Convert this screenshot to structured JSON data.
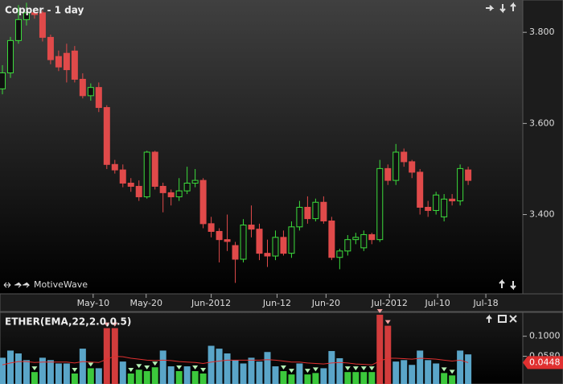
{
  "chart_data": [
    {
      "type": "candlestick",
      "title": "Copper - 1 day",
      "watermark": "MotiveWave",
      "up_color": "#3cdc3c",
      "down_color": "#e04a4a",
      "open": [
        3.676,
        3.711,
        3.782,
        3.828,
        3.843,
        3.843,
        3.789,
        3.747,
        3.754,
        3.759,
        3.697,
        3.661,
        3.679,
        3.635,
        3.51,
        3.498,
        3.469,
        3.462,
        3.439,
        3.537,
        3.462,
        3.448,
        3.439,
        3.452,
        3.469,
        3.475,
        3.38,
        3.363,
        3.345,
        3.332,
        3.302,
        3.377,
        3.368,
        3.315,
        3.309,
        3.35,
        3.315,
        3.373,
        3.416,
        3.391,
        3.427,
        3.386,
        3.306,
        3.32,
        3.345,
        3.327,
        3.356,
        3.345,
        3.501,
        3.475,
        3.537,
        3.516,
        3.493,
        3.416,
        3.409,
        3.395,
        3.434,
        3.43,
        3.498
      ],
      "high": [
        3.728,
        3.79,
        3.86,
        3.865,
        3.85,
        3.848,
        3.795,
        3.76,
        3.775,
        3.77,
        3.71,
        3.688,
        3.69,
        3.64,
        3.52,
        3.51,
        3.48,
        3.475,
        3.54,
        3.54,
        3.47,
        3.455,
        3.48,
        3.505,
        3.5,
        3.48,
        3.395,
        3.37,
        3.4,
        3.34,
        3.39,
        3.42,
        3.38,
        3.345,
        3.365,
        3.365,
        3.385,
        3.43,
        3.44,
        3.435,
        3.44,
        3.395,
        3.325,
        3.355,
        3.36,
        3.365,
        3.36,
        3.52,
        3.51,
        3.555,
        3.545,
        3.52,
        3.5,
        3.43,
        3.45,
        3.445,
        3.445,
        3.51,
        3.505
      ],
      "low": [
        3.664,
        3.7,
        3.775,
        3.815,
        3.83,
        3.78,
        3.73,
        3.715,
        3.69,
        3.69,
        3.655,
        3.65,
        3.625,
        3.5,
        3.49,
        3.46,
        3.45,
        3.43,
        3.435,
        3.455,
        3.405,
        3.42,
        3.43,
        3.445,
        3.46,
        3.37,
        3.35,
        3.295,
        3.32,
        3.25,
        3.295,
        3.35,
        3.3,
        3.285,
        3.3,
        3.31,
        3.305,
        3.365,
        3.38,
        3.385,
        3.38,
        3.3,
        3.28,
        3.31,
        3.335,
        3.32,
        3.335,
        3.34,
        3.465,
        3.465,
        3.505,
        3.48,
        3.4,
        3.395,
        3.4,
        3.385,
        3.42,
        3.42,
        3.465
      ],
      "close": [
        3.711,
        3.782,
        3.828,
        3.843,
        3.839,
        3.789,
        3.74,
        3.724,
        3.718,
        3.697,
        3.661,
        3.679,
        3.635,
        3.51,
        3.498,
        3.469,
        3.462,
        3.439,
        3.537,
        3.462,
        3.448,
        3.439,
        3.452,
        3.469,
        3.475,
        3.38,
        3.363,
        3.345,
        3.341,
        3.302,
        3.377,
        3.368,
        3.315,
        3.309,
        3.35,
        3.315,
        3.373,
        3.416,
        3.391,
        3.427,
        3.386,
        3.306,
        3.32,
        3.345,
        3.35,
        3.356,
        3.345,
        3.501,
        3.475,
        3.537,
        3.516,
        3.493,
        3.416,
        3.409,
        3.443,
        3.434,
        3.43,
        3.501,
        3.475
      ],
      "xlim": [
        -0.3,
        64.8
      ],
      "xticks": [
        {
          "value": 11.3,
          "label": "May-10"
        },
        {
          "value": 17.9,
          "label": "May-20"
        },
        {
          "value": 26.0,
          "label": "Jun-2012"
        },
        {
          "value": 34.2,
          "label": "Jun-12"
        },
        {
          "value": 40.3,
          "label": "Jun-20"
        },
        {
          "value": 48.2,
          "label": "Jul-2012"
        },
        {
          "value": 54.2,
          "label": "Jul-10"
        },
        {
          "value": 60.2,
          "label": "Jul-18"
        }
      ],
      "ylim": [
        3.226,
        3.871
      ],
      "yticks": [
        {
          "value": 3.8,
          "label": "3.800"
        },
        {
          "value": 3.6,
          "label": "3.600"
        },
        {
          "value": 3.4,
          "label": "3.400"
        }
      ]
    },
    {
      "type": "bar",
      "title": "ETHER(EMA,22,2.0,0.5)",
      "values": [
        0.055,
        0.07,
        0.064,
        0.05,
        0.025,
        0.055,
        0.05,
        0.043,
        0.043,
        0.022,
        0.074,
        0.033,
        0.033,
        0.117,
        0.117,
        0.047,
        0.022,
        0.03,
        0.027,
        0.035,
        0.07,
        0.037,
        0.027,
        0.037,
        0.027,
        0.022,
        0.08,
        0.074,
        0.064,
        0.05,
        0.043,
        0.055,
        0.047,
        0.067,
        0.037,
        0.027,
        0.02,
        0.043,
        0.02,
        0.023,
        0.033,
        0.069,
        0.054,
        0.025,
        0.025,
        0.025,
        0.025,
        0.145,
        0.122,
        0.047,
        0.05,
        0.04,
        0.07,
        0.05,
        0.043,
        0.023,
        0.018,
        0.07,
        0.062
      ],
      "colors": [
        "#5aa5c8",
        "#5aa5c8",
        "#5aa5c8",
        "#5aa5c8",
        "#3cc83c",
        "#5aa5c8",
        "#5aa5c8",
        "#5aa5c8",
        "#5aa5c8",
        "#3cc83c",
        "#5aa5c8",
        "#3cc83c",
        "#5aa5c8",
        "#d23c3c",
        "#d23c3c",
        "#5aa5c8",
        "#3cc83c",
        "#3cc83c",
        "#3cc83c",
        "#3cc83c",
        "#5aa5c8",
        "#5aa5c8",
        "#3cc83c",
        "#5aa5c8",
        "#3cc83c",
        "#3cc83c",
        "#5aa5c8",
        "#5aa5c8",
        "#5aa5c8",
        "#5aa5c8",
        "#5aa5c8",
        "#5aa5c8",
        "#5aa5c8",
        "#5aa5c8",
        "#5aa5c8",
        "#3cc83c",
        "#3cc83c",
        "#5aa5c8",
        "#3cc83c",
        "#3cc83c",
        "#5aa5c8",
        "#5aa5c8",
        "#5aa5c8",
        "#3cc83c",
        "#3cc83c",
        "#3cc83c",
        "#3cc83c",
        "#d23c3c",
        "#d23c3c",
        "#5aa5c8",
        "#5aa5c8",
        "#5aa5c8",
        "#5aa5c8",
        "#5aa5c8",
        "#5aa5c8",
        "#3cc83c",
        "#3cc83c",
        "#5aa5c8",
        "#5aa5c8"
      ],
      "line": {
        "color": "#e03030",
        "values": [
          0.04,
          0.044,
          0.047,
          0.047,
          0.045,
          0.046,
          0.046,
          0.046,
          0.046,
          0.044,
          0.047,
          0.046,
          0.045,
          0.052,
          0.058,
          0.057,
          0.054,
          0.052,
          0.05,
          0.049,
          0.05,
          0.049,
          0.047,
          0.046,
          0.045,
          0.043,
          0.046,
          0.048,
          0.05,
          0.05,
          0.05,
          0.05,
          0.05,
          0.051,
          0.05,
          0.048,
          0.046,
          0.046,
          0.044,
          0.043,
          0.042,
          0.044,
          0.045,
          0.044,
          0.042,
          0.041,
          0.04,
          0.048,
          0.054,
          0.054,
          0.053,
          0.052,
          0.054,
          0.053,
          0.052,
          0.05,
          0.048,
          0.05,
          0.0448
        ]
      },
      "xlim": [
        -0.3,
        64.8
      ],
      "ylim": [
        0,
        0.15
      ],
      "yticks": [
        {
          "value": 0.1,
          "label": "0.1000"
        },
        {
          "value": 0.058,
          "label": "0.0580"
        }
      ],
      "last_value": {
        "value": 0.0448,
        "label": "0.0448",
        "color": "#e03030"
      }
    }
  ]
}
